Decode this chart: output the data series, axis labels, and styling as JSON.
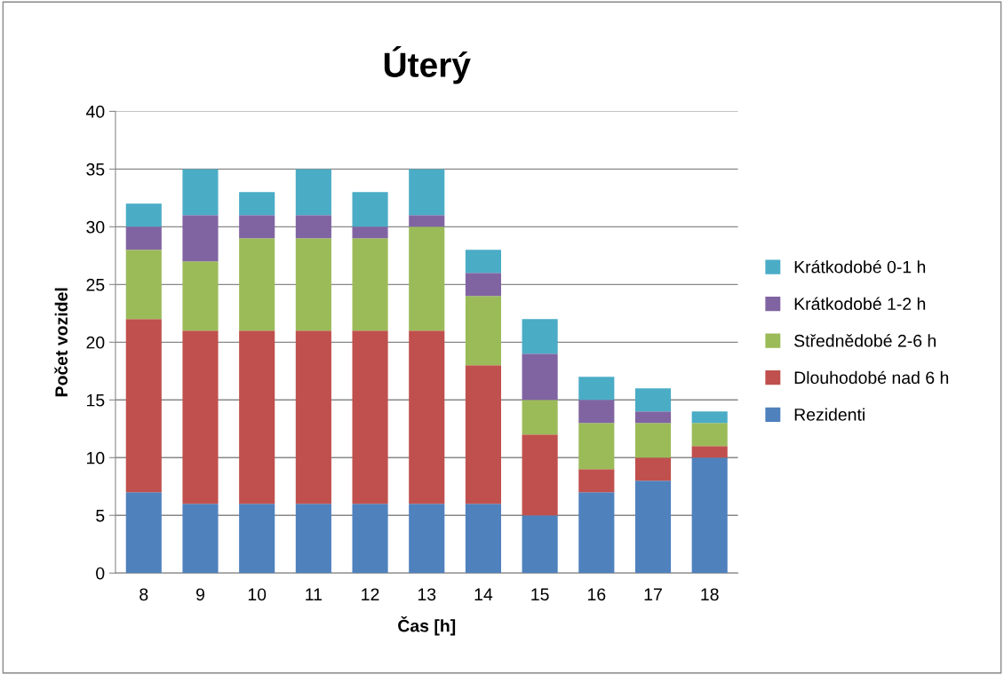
{
  "chart_data": {
    "type": "bar",
    "title": "Úterý",
    "xlabel": "Čas [h]",
    "ylabel": "Počet vozidel",
    "stacked": true,
    "categories": [
      "8",
      "9",
      "10",
      "11",
      "12",
      "13",
      "14",
      "15",
      "16",
      "17",
      "18"
    ],
    "series": [
      {
        "name": "Rezidenti",
        "color": "#4f81bd",
        "values": [
          7,
          6,
          6,
          6,
          6,
          6,
          6,
          5,
          7,
          8,
          10
        ]
      },
      {
        "name": "Dlouhodobé nad 6 h",
        "color": "#c0504d",
        "values": [
          15,
          15,
          15,
          15,
          15,
          15,
          12,
          7,
          2,
          2,
          1
        ]
      },
      {
        "name": "Střednědobé 2-6 h",
        "color": "#9bbb59",
        "values": [
          6,
          6,
          8,
          8,
          8,
          9,
          6,
          3,
          4,
          3,
          2
        ]
      },
      {
        "name": "Krátkodobé 1-2 h",
        "color": "#8064a2",
        "values": [
          2,
          4,
          2,
          2,
          1,
          1,
          2,
          4,
          2,
          1,
          0
        ]
      },
      {
        "name": "Krátkodobé 0-1 h",
        "color": "#4bacc6",
        "values": [
          2,
          4,
          2,
          4,
          3,
          4,
          2,
          3,
          2,
          2,
          1
        ]
      }
    ],
    "ylim": [
      0,
      40
    ],
    "yticks": [
      0,
      5,
      10,
      15,
      20,
      25,
      30,
      35,
      40
    ],
    "grid": "y",
    "legend": "right"
  }
}
